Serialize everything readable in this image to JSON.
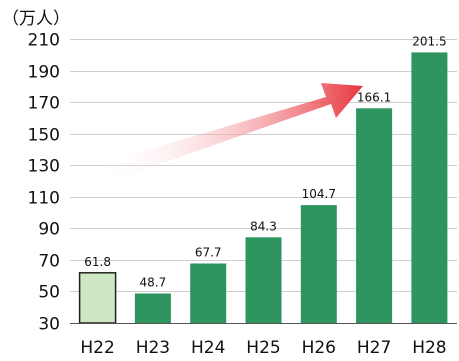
{
  "chart_data": {
    "type": "bar",
    "unit_label": "（万人）",
    "categories": [
      "H22",
      "H23",
      "H24",
      "H25",
      "H26",
      "H27",
      "H28"
    ],
    "values": [
      61.8,
      48.7,
      67.7,
      84.3,
      104.7,
      166.1,
      201.5
    ],
    "value_labels": [
      "61.8",
      "48.7",
      "67.7",
      "84.3",
      "104.7",
      "166.1",
      "201.5"
    ],
    "highlight_index": 0,
    "yticks": [
      30,
      50,
      70,
      90,
      110,
      130,
      150,
      170,
      190,
      210
    ],
    "ylim": [
      30,
      210
    ],
    "grid": true,
    "colors": {
      "bar": "#2e9460",
      "bar_highlight": "#cfe8c4",
      "bar_highlight_border": "#222222",
      "grid": "#cfcfcf",
      "arrow": "#e8343c"
    },
    "annotation": "trend-arrow"
  }
}
